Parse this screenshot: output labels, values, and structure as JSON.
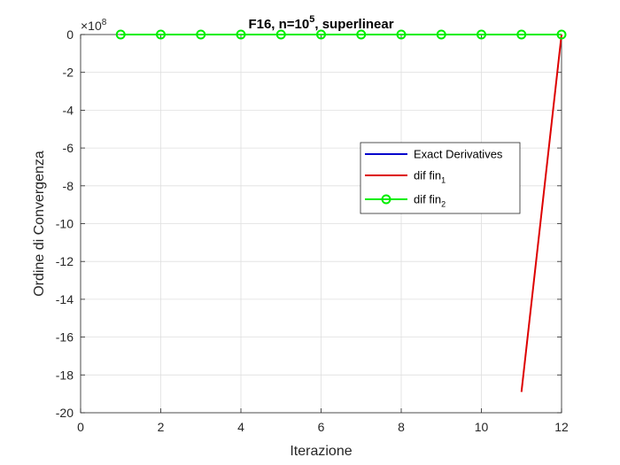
{
  "chart_data": {
    "type": "line",
    "title": "F16, n=10^5, superlinear",
    "title_parts": {
      "base": "F16, n=10",
      "exponent": "5",
      "suffix": ", superlinear"
    },
    "xlabel": "Iterazione",
    "ylabel": "Ordine di Convergenza",
    "exponent_prefix": "×10",
    "exponent_power": "8",
    "y_multiplier": 100000000,
    "xlim": [
      0,
      12
    ],
    "ylim": [
      -20,
      0
    ],
    "x_ticks": [
      0,
      2,
      4,
      6,
      8,
      10,
      12
    ],
    "y_ticks": [
      0,
      -2,
      -4,
      -6,
      -8,
      -10,
      -12,
      -14,
      -16,
      -18,
      -20
    ],
    "grid": true,
    "legend_position": "center-right",
    "series": [
      {
        "name": "Exact Derivatives",
        "legend_base": "Exact Derivatives",
        "legend_sub": "",
        "color": "#0000cc",
        "marker": "none",
        "x": [],
        "y": []
      },
      {
        "name": "dif fin_1",
        "legend_base": "dif fin",
        "legend_sub": "1",
        "color": "#dd0000",
        "marker": "none",
        "x": [
          11,
          12
        ],
        "y": [
          -18.9,
          0
        ]
      },
      {
        "name": "dif fin_2",
        "legend_base": "dif fin",
        "legend_sub": "2",
        "color": "#00ee00",
        "marker": "circle",
        "x": [
          1,
          2,
          3,
          4,
          5,
          6,
          7,
          8,
          9,
          10,
          11,
          12
        ],
        "y": [
          0,
          0,
          0,
          0,
          0,
          0,
          0,
          0,
          0,
          0,
          0,
          0
        ]
      }
    ]
  }
}
